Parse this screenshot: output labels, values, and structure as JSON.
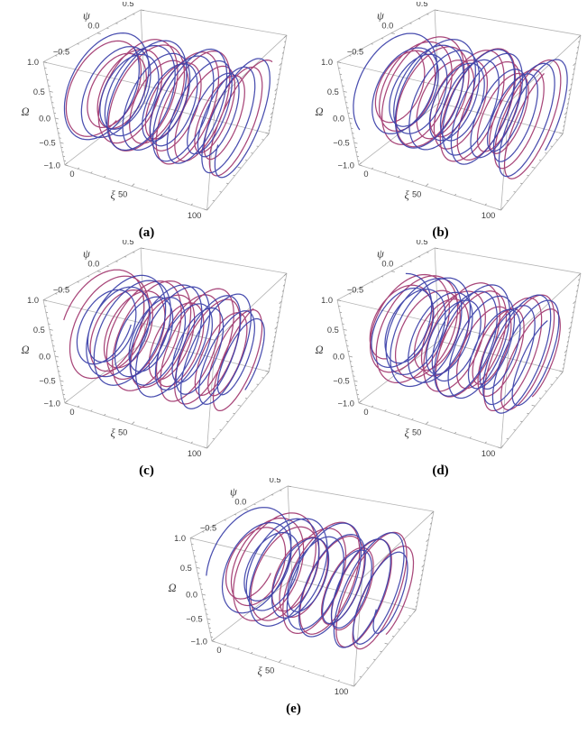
{
  "page": {
    "background": "#ffffff"
  },
  "figure": {
    "panels": [
      {
        "id": "a",
        "caption": "(a)"
      },
      {
        "id": "b",
        "caption": "(b)"
      },
      {
        "id": "c",
        "caption": "(c)"
      },
      {
        "id": "d",
        "caption": "(d)"
      },
      {
        "id": "e",
        "caption": "(e)"
      }
    ],
    "colors": {
      "series_blue": "#3a3fa8",
      "series_red": "#a1366e",
      "box_edge": "#b3b3b3",
      "tick": "#999999",
      "tick_label": "#3d3d3d",
      "caption": "#000000"
    }
  },
  "chart_data": [
    {
      "type": "line",
      "projection": "parametric3d",
      "panel": "a",
      "title": "(a)",
      "xlabel": "ξ",
      "ylabel": "ψ",
      "zlabel": "Ω",
      "xlim": [
        0,
        100
      ],
      "ylim": [
        -0.5,
        0.5
      ],
      "zlim": [
        -1,
        1
      ],
      "grid": false,
      "legend": null,
      "box": true,
      "xticks": {
        "values": [
          0,
          50,
          100
        ],
        "labels": [
          "0",
          "50",
          "100"
        ],
        "minor_step": 10
      },
      "yticks": {
        "values": [
          -0.5,
          0,
          0.5
        ],
        "labels": [
          "−0.5",
          "0.0",
          "0.5"
        ],
        "minor_step": 0.1
      },
      "zticks": {
        "values": [
          -1,
          -0.5,
          0,
          0.5,
          1
        ],
        "labels": [
          "−1.0",
          "−0.5",
          "0.0",
          "0.5",
          "1.0"
        ],
        "minor_step": 0.1
      },
      "series": [
        {
          "name": "trajectory-red",
          "color": "#a1366e",
          "model": "modulated-helix",
          "t_range": [
            0,
            100
          ],
          "t_step": 0.08,
          "amp_psi": 0.46,
          "amp_omega": 0.96,
          "freq": 0.1265,
          "phase": 2.9,
          "mod_freq": 0.029,
          "mod_phase": 2.2,
          "mod_depth": 0.17
        },
        {
          "name": "trajectory-blue",
          "color": "#3a3fa8",
          "model": "modulated-helix",
          "t_range": [
            0,
            100
          ],
          "t_step": 0.08,
          "amp_psi": 0.46,
          "amp_omega": 0.96,
          "freq": 0.136,
          "phase": 1.15,
          "mod_freq": 0.033,
          "mod_phase": 0.6,
          "mod_depth": 0.16
        }
      ]
    },
    {
      "type": "line",
      "projection": "parametric3d",
      "panel": "b",
      "title": "(b)",
      "xlabel": "ξ",
      "ylabel": "ψ",
      "zlabel": "Ω",
      "xlim": [
        0,
        100
      ],
      "ylim": [
        -0.5,
        0.5
      ],
      "zlim": [
        -1,
        1
      ],
      "grid": false,
      "legend": null,
      "box": true,
      "xticks": {
        "values": [
          0,
          50,
          100
        ],
        "labels": [
          "0",
          "50",
          "100"
        ],
        "minor_step": 10
      },
      "yticks": {
        "values": [
          -0.5,
          0,
          0.5
        ],
        "labels": [
          "−0.5",
          "0.0",
          "0.5"
        ],
        "minor_step": 0.1
      },
      "zticks": {
        "values": [
          -1,
          -0.5,
          0,
          0.5,
          1
        ],
        "labels": [
          "−1.0",
          "−0.5",
          "0.0",
          "0.5",
          "1.0"
        ],
        "minor_step": 0.1
      },
      "series": [
        {
          "name": "trajectory-red",
          "color": "#a1366e",
          "model": "modulated-helix",
          "t_range": [
            0,
            100
          ],
          "t_step": 0.08,
          "amp_psi": 0.46,
          "amp_omega": 0.96,
          "freq": 0.1285,
          "phase": 0.8,
          "mod_freq": 0.027,
          "mod_phase": 4.0,
          "mod_depth": 0.17
        },
        {
          "name": "trajectory-blue",
          "color": "#3a3fa8",
          "model": "modulated-helix",
          "t_range": [
            0,
            100
          ],
          "t_step": 0.08,
          "amp_psi": 0.46,
          "amp_omega": 0.96,
          "freq": 0.1375,
          "phase": 4.35,
          "mod_freq": 0.031,
          "mod_phase": 1.7,
          "mod_depth": 0.17
        }
      ]
    },
    {
      "type": "line",
      "projection": "parametric3d",
      "panel": "c",
      "title": "(c)",
      "xlabel": "ξ",
      "ylabel": "ψ",
      "zlabel": "Ω",
      "xlim": [
        0,
        100
      ],
      "ylim": [
        -0.5,
        0.5
      ],
      "zlim": [
        -1,
        1
      ],
      "grid": false,
      "legend": null,
      "box": true,
      "xticks": {
        "values": [
          0,
          50,
          100
        ],
        "labels": [
          "0",
          "50",
          "100"
        ],
        "minor_step": 10
      },
      "yticks": {
        "values": [
          -0.5,
          0,
          0.5
        ],
        "labels": [
          "−0.5",
          "0.0",
          "0.5"
        ],
        "minor_step": 0.1
      },
      "zticks": {
        "values": [
          -1,
          -0.5,
          0,
          0.5,
          1
        ],
        "labels": [
          "−1.0",
          "−0.5",
          "0.0",
          "0.5",
          "1.0"
        ],
        "minor_step": 0.1
      },
      "series": [
        {
          "name": "trajectory-red",
          "color": "#a1366e",
          "model": "modulated-helix",
          "t_range": [
            0,
            100
          ],
          "t_step": 0.08,
          "amp_psi": 0.46,
          "amp_omega": 0.96,
          "freq": 0.1315,
          "phase": 5.3,
          "mod_freq": 0.03,
          "mod_phase": 0.9,
          "mod_depth": 0.16
        },
        {
          "name": "trajectory-blue",
          "color": "#3a3fa8",
          "model": "modulated-helix",
          "t_range": [
            0,
            100
          ],
          "t_step": 0.08,
          "amp_psi": 0.46,
          "amp_omega": 0.96,
          "freq": 0.1415,
          "phase": 2.1,
          "mod_freq": 0.034,
          "mod_phase": 3.2,
          "mod_depth": 0.18
        }
      ]
    },
    {
      "type": "line",
      "projection": "parametric3d",
      "panel": "d",
      "title": "(d)",
      "xlabel": "ξ",
      "ylabel": "ψ",
      "zlabel": "Ω",
      "xlim": [
        0,
        100
      ],
      "ylim": [
        -0.5,
        0.5
      ],
      "zlim": [
        -1,
        1
      ],
      "grid": false,
      "legend": null,
      "box": true,
      "xticks": {
        "values": [
          0,
          50,
          100
        ],
        "labels": [
          "0",
          "50",
          "100"
        ],
        "minor_step": 10
      },
      "yticks": {
        "values": [
          -0.5,
          0,
          0.5
        ],
        "labels": [
          "−0.5",
          "0.0",
          "0.5"
        ],
        "minor_step": 0.1
      },
      "zticks": {
        "values": [
          -1,
          -0.5,
          0,
          0.5,
          1
        ],
        "labels": [
          "−1.0",
          "−0.5",
          "0.0",
          "0.5",
          "1.0"
        ],
        "minor_step": 0.1
      },
      "series": [
        {
          "name": "trajectory-red",
          "color": "#a1366e",
          "model": "modulated-helix",
          "t_range": [
            0,
            100
          ],
          "t_step": 0.08,
          "amp_psi": 0.46,
          "amp_omega": 0.96,
          "freq": 0.1295,
          "phase": 3.7,
          "mod_freq": 0.028,
          "mod_phase": 5.1,
          "mod_depth": 0.18
        },
        {
          "name": "trajectory-blue",
          "color": "#3a3fa8",
          "model": "modulated-helix",
          "t_range": [
            0,
            100
          ],
          "t_step": 0.08,
          "amp_psi": 0.46,
          "amp_omega": 0.96,
          "freq": 0.1395,
          "phase": 0.35,
          "mod_freq": 0.032,
          "mod_phase": 2.6,
          "mod_depth": 0.17
        }
      ]
    },
    {
      "type": "line",
      "projection": "parametric3d",
      "panel": "e",
      "title": "(e)",
      "xlabel": "ξ",
      "ylabel": "ψ",
      "zlabel": "Ω",
      "xlim": [
        0,
        100
      ],
      "ylim": [
        -0.5,
        0.5
      ],
      "zlim": [
        -1,
        1
      ],
      "grid": false,
      "legend": null,
      "box": true,
      "xticks": {
        "values": [
          0,
          50,
          100
        ],
        "labels": [
          "0",
          "50",
          "100"
        ],
        "minor_step": 10
      },
      "yticks": {
        "values": [
          -0.5,
          0,
          0.5
        ],
        "labels": [
          "−0.5",
          "0.0",
          "0.5"
        ],
        "minor_step": 0.1
      },
      "zticks": {
        "values": [
          -1,
          -0.5,
          0,
          0.5,
          1
        ],
        "labels": [
          "−1.0",
          "−0.5",
          "0.0",
          "0.5",
          "1.0"
        ],
        "minor_step": 0.1
      },
      "series": [
        {
          "name": "trajectory-red",
          "color": "#a1366e",
          "model": "modulated-helix",
          "t_range": [
            0,
            100
          ],
          "t_step": 0.08,
          "amp_psi": 0.46,
          "amp_omega": 0.96,
          "freq": 0.1215,
          "phase": 2.4,
          "mod_freq": 0.03,
          "mod_phase": 3.9,
          "mod_depth": 0.17
        },
        {
          "name": "trajectory-blue",
          "color": "#3a3fa8",
          "model": "modulated-helix",
          "t_range": [
            0,
            100
          ],
          "t_step": 0.08,
          "amp_psi": 0.46,
          "amp_omega": 0.96,
          "freq": 0.13,
          "phase": 5.0,
          "mod_freq": 0.036,
          "mod_phase": 1.15,
          "mod_depth": 0.19
        }
      ]
    }
  ]
}
